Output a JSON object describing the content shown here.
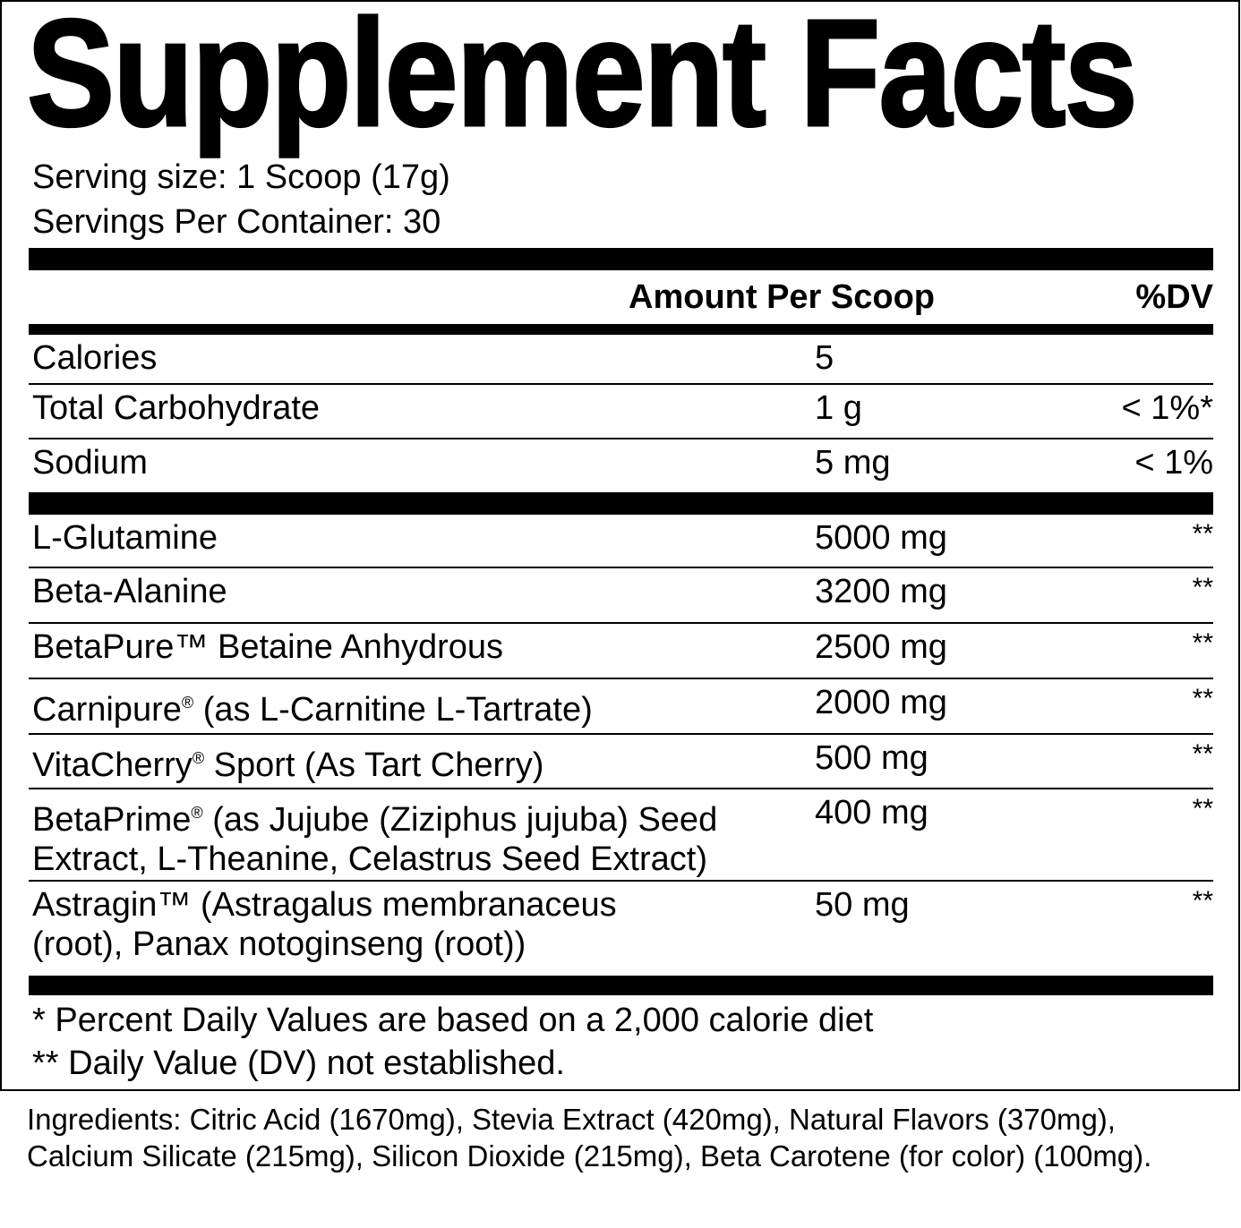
{
  "title": "Supplement Facts",
  "serving_size": "Serving size: 1 Scoop (17g)",
  "servings_per_container": "Servings Per Container: 30",
  "header": {
    "amount": "Amount Per Scoop",
    "dv": "%DV"
  },
  "nutrients": [
    {
      "name": "Calories",
      "amount": "5",
      "dv": ""
    },
    {
      "name": "Total Carbohydrate",
      "amount": "1 g",
      "dv": "< 1%*"
    },
    {
      "name": "Sodium",
      "amount": "5 mg",
      "dv": "< 1%"
    }
  ],
  "ingredients_rows": [
    {
      "name": "L-Glutamine",
      "amount": "5000 mg",
      "dv": "**"
    },
    {
      "name": "Beta-Alanine",
      "amount": "3200 mg",
      "dv": "**"
    },
    {
      "name": "BetaPure™ Betaine Anhydrous",
      "amount": "2500 mg",
      "dv": "**"
    },
    {
      "name": "Carnipure",
      "name_sup": "®",
      "name_rest": " (as L-Carnitine L-Tartrate)",
      "amount": "2000 mg",
      "dv": "**"
    },
    {
      "name": "VitaCherry",
      "name_sup": "®",
      "name_rest": " Sport (As Tart Cherry)",
      "amount": "500 mg",
      "dv": "**"
    },
    {
      "name": "BetaPrime",
      "name_sup": "®",
      "name_rest": " (as Jujube (Ziziphus jujuba) Seed Extract, L-Theanine, Celastrus Seed Extract)",
      "amount": "400 mg",
      "dv": "**"
    },
    {
      "name": "Astragin™ (Astragalus membranaceus (root), Panax notoginseng (root))",
      "amount": "50 mg",
      "dv": "**"
    }
  ],
  "footnotes": [
    "* Percent Daily Values are based on a 2,000 calorie diet",
    "** Daily Value (DV) not established."
  ],
  "ingredients": "Ingredients: Citric Acid (1670mg), Stevia Extract (420mg), Natural Flavors (370mg), Calcium Silicate (215mg), Silicon Dioxide (215mg), Beta Carotene (for color) (100mg)."
}
